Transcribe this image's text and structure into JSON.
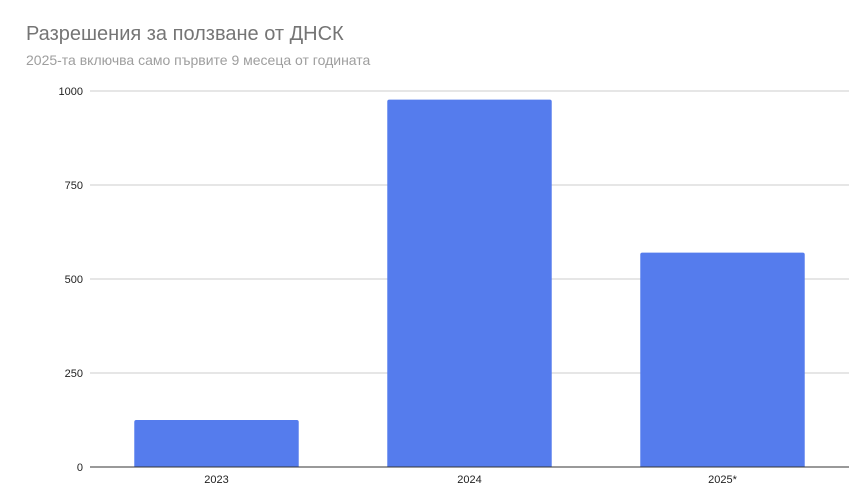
{
  "chart_data": {
    "type": "bar",
    "title": "Разрешения за ползване от ДНСК",
    "subtitle": "2025-та включва само първите 9 месеца от годината",
    "categories": [
      "2023",
      "2024",
      "2025*"
    ],
    "values": [
      125,
      977,
      570
    ],
    "xlabel": "",
    "ylabel": "",
    "ylim": [
      0,
      1000
    ],
    "yticks": [
      0,
      250,
      500,
      750,
      1000
    ],
    "ytick_labels": [
      "0",
      "250",
      "500",
      "750",
      "1000"
    ],
    "grid": true,
    "legend": "none",
    "bar_color": "#557ced"
  }
}
